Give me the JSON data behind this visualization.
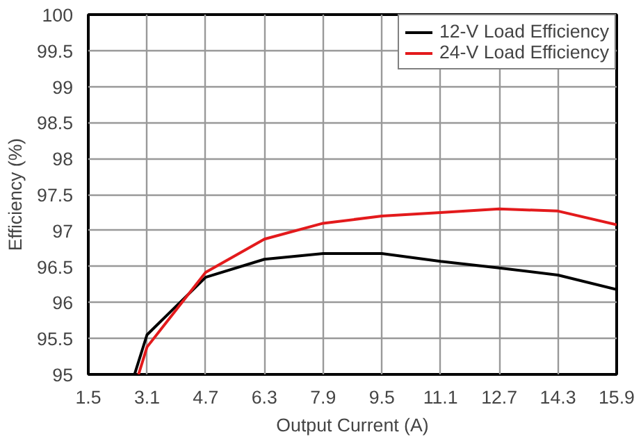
{
  "chart_data": {
    "type": "line",
    "xlabel": "Output Current (A)",
    "ylabel": "Efficiency (%)",
    "xlim": [
      1.5,
      15.9
    ],
    "xticks": [
      1.5,
      3.1,
      4.7,
      6.3,
      7.9,
      9.5,
      11.1,
      12.7,
      14.3,
      15.9
    ],
    "ylim": [
      95,
      100
    ],
    "yticks": [
      95,
      95.5,
      96,
      96.5,
      97,
      97.5,
      98,
      98.5,
      99,
      99.5,
      100
    ],
    "grid": true,
    "legend": "top right",
    "line_style": "solid",
    "series": [
      {
        "name": "12-V Load Efficiency",
        "color": "#000000",
        "x": [
          2.76,
          3.1,
          4.7,
          6.3,
          7.9,
          9.5,
          11.1,
          12.7,
          14.3,
          15.9
        ],
        "values": [
          95,
          95.55,
          96.35,
          96.6,
          96.68,
          96.68,
          96.57,
          96.48,
          96.38,
          96.18
        ]
      },
      {
        "name": "24-V Load Efficiency",
        "color": "#e31a1c",
        "x": [
          2.87,
          3.1,
          4.7,
          6.3,
          7.9,
          9.5,
          11.1,
          12.7,
          14.3,
          15.9
        ],
        "values": [
          95,
          95.38,
          96.42,
          96.88,
          97.1,
          97.2,
          97.25,
          97.3,
          97.27,
          97.08
        ]
      }
    ]
  }
}
